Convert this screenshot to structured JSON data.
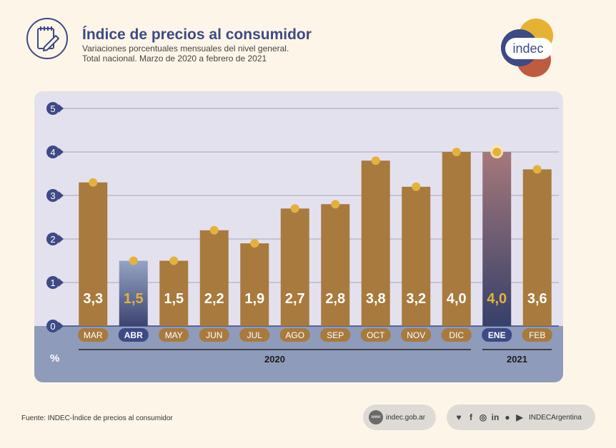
{
  "header": {
    "title": "Índice de precios al consumidor",
    "subtitle_line1": "Variaciones porcentuales mensuales del nivel general.",
    "subtitle_line2": "Total nacional. Marzo de 2020 a febrero de 2021"
  },
  "logo": {
    "text": "indec"
  },
  "chart_data": {
    "type": "bar",
    "categories": [
      "MAR",
      "ABR",
      "MAY",
      "JUN",
      "JUL",
      "AGO",
      "SEP",
      "OCT",
      "NOV",
      "DIC",
      "ENE",
      "FEB"
    ],
    "values": [
      3.3,
      1.5,
      1.5,
      2.2,
      1.9,
      2.7,
      2.8,
      3.8,
      3.2,
      4.0,
      4.0,
      3.6
    ],
    "value_labels": [
      "3,3",
      "1,5",
      "1,5",
      "2,2",
      "1,9",
      "2,7",
      "2,8",
      "3,8",
      "3,2",
      "4,0",
      "4,0",
      "3,6"
    ],
    "highlighted": [
      "ABR",
      "ENE"
    ],
    "yticks": [
      0,
      1,
      2,
      3,
      4,
      5
    ],
    "ylim": [
      0,
      5
    ],
    "ylabel": "%",
    "years": [
      {
        "label": "2020",
        "from": "MAR",
        "to": "DIC"
      },
      {
        "label": "2021",
        "from": "ENE",
        "to": "FEB"
      }
    ],
    "grid": true,
    "colors": {
      "bar": "#a87a3e",
      "abr_top": "#95a4c4",
      "abr_bottom": "#3c4470",
      "ene_top": "#a5787a",
      "ene_bottom": "#36406a",
      "dot": "#e3b23c",
      "value_highlight": "#e3b23c",
      "plot_bg": "#e4e1ee",
      "base_bg": "#8f9bbb",
      "grid": "#b1b0c4",
      "axis_circle": "#3e4a86"
    }
  },
  "footer": {
    "source": "Fuente: INDEC-Índice de precios al consumidor",
    "web_icon": "www",
    "website": "indec.gob.ar",
    "social_handle": "INDECArgentina",
    "social_icons": [
      "twitter-icon",
      "facebook-icon",
      "instagram-icon",
      "linkedin-icon",
      "spotify-icon",
      "youtube-icon"
    ]
  }
}
